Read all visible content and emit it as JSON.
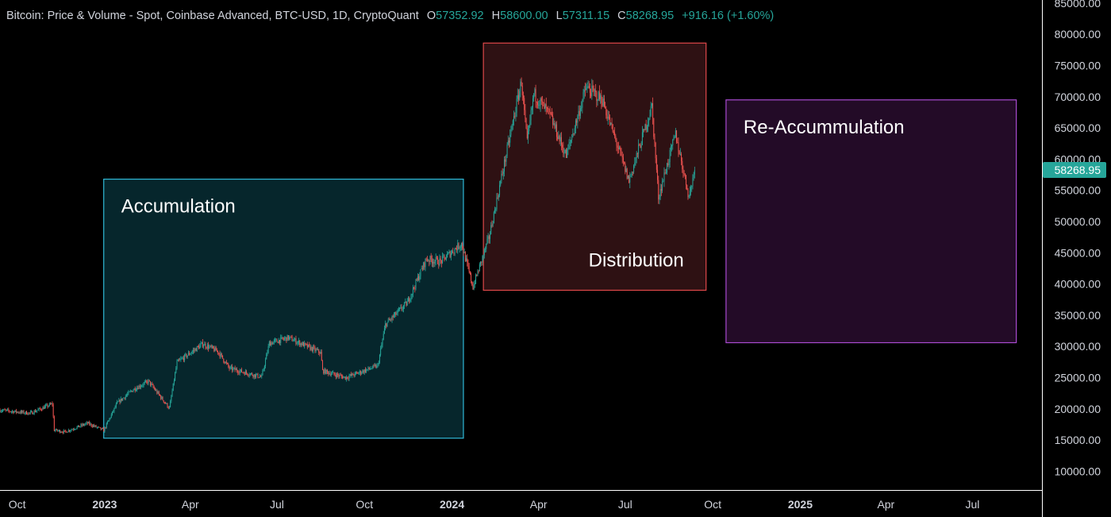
{
  "legend": {
    "title": "Bitcoin: Price & Volume - Spot, Coinbase Advanced, BTC-USD, 1D, CryptoQuant",
    "open_label": "O",
    "open": "57352.92",
    "high_label": "H",
    "high": "58600.00",
    "low_label": "L",
    "low": "57311.15",
    "close_label": "C",
    "close": "58268.95",
    "change": "+916.16 (+1.60%)"
  },
  "colors": {
    "background": "#000000",
    "up": "#26a69a",
    "down": "#ef5350",
    "axis_text": "#d1d4dc",
    "accumulation": "#2fb8d6",
    "distribution": "#e0484a",
    "reaccumulation": "#a94bd1"
  },
  "chart_data": {
    "type": "candlestick",
    "symbol": "BTC-USD",
    "interval": "1D",
    "y_axis": {
      "ticks": [
        "10000.00",
        "15000.00",
        "20000.00",
        "25000.00",
        "30000.00",
        "35000.00",
        "40000.00",
        "45000.00",
        "50000.00",
        "55000.00",
        "60000.00",
        "65000.00",
        "70000.00",
        "75000.00",
        "80000.00",
        "85000.00"
      ],
      "range": [
        7000,
        85500
      ],
      "last_price_label": "58268.95",
      "last_price": 58268.95
    },
    "x_axis": {
      "ticks": [
        {
          "label": "Oct",
          "date": "2022-10-01",
          "bold": false
        },
        {
          "label": "2023",
          "date": "2023-01-01",
          "bold": true
        },
        {
          "label": "Apr",
          "date": "2023-04-01",
          "bold": false
        },
        {
          "label": "Jul",
          "date": "2023-07-01",
          "bold": false
        },
        {
          "label": "Oct",
          "date": "2023-10-01",
          "bold": false
        },
        {
          "label": "2024",
          "date": "2024-01-01",
          "bold": true
        },
        {
          "label": "Apr",
          "date": "2024-04-01",
          "bold": false
        },
        {
          "label": "Jul",
          "date": "2024-07-01",
          "bold": false
        },
        {
          "label": "Oct",
          "date": "2024-10-01",
          "bold": false
        },
        {
          "label": "2025",
          "date": "2025-01-01",
          "bold": true
        },
        {
          "label": "Apr",
          "date": "2025-04-01",
          "bold": false
        },
        {
          "label": "Jul",
          "date": "2025-07-01",
          "bold": false
        }
      ],
      "range": [
        "2022-09-13",
        "2025-09-12"
      ]
    },
    "price_path": [
      [
        "2022-09-13",
        19800
      ],
      [
        "2022-10-15",
        19300
      ],
      [
        "2022-11-07",
        20800
      ],
      [
        "2022-11-09",
        16600
      ],
      [
        "2022-11-20",
        16300
      ],
      [
        "2022-12-14",
        17700
      ],
      [
        "2022-12-31",
        16550
      ],
      [
        "2023-01-14",
        20900
      ],
      [
        "2023-01-31",
        23100
      ],
      [
        "2023-02-16",
        24400
      ],
      [
        "2023-03-10",
        20100
      ],
      [
        "2023-03-18",
        27400
      ],
      [
        "2023-04-14",
        30400
      ],
      [
        "2023-04-30",
        29200
      ],
      [
        "2023-05-12",
        26500
      ],
      [
        "2023-06-15",
        25100
      ],
      [
        "2023-06-23",
        30500
      ],
      [
        "2023-07-13",
        31400
      ],
      [
        "2023-08-16",
        29000
      ],
      [
        "2023-08-18",
        26100
      ],
      [
        "2023-09-11",
        25000
      ],
      [
        "2023-10-15",
        26900
      ],
      [
        "2023-10-23",
        33500
      ],
      [
        "2023-11-15",
        37000
      ],
      [
        "2023-12-05",
        44000
      ],
      [
        "2023-12-20",
        43600
      ],
      [
        "2024-01-11",
        46500
      ],
      [
        "2024-01-23",
        39500
      ],
      [
        "2024-02-09",
        47500
      ],
      [
        "2024-02-28",
        61500
      ],
      [
        "2024-03-14",
        72500
      ],
      [
        "2024-03-20",
        62500
      ],
      [
        "2024-03-27",
        70500
      ],
      [
        "2024-04-13",
        67000
      ],
      [
        "2024-04-30",
        60500
      ],
      [
        "2024-05-21",
        71500
      ],
      [
        "2024-06-07",
        69500
      ],
      [
        "2024-07-05",
        56500
      ],
      [
        "2024-07-29",
        68500
      ],
      [
        "2024-08-05",
        54000
      ],
      [
        "2024-08-23",
        64000
      ],
      [
        "2024-09-06",
        54000
      ],
      [
        "2024-09-12",
        58268.95
      ]
    ],
    "annotations": [
      {
        "label": "Accumulation",
        "x0": "2022-12-31",
        "x1": "2024-01-13",
        "y0": 15300,
        "y1": 56800
      },
      {
        "label": "Distribution",
        "x0": "2024-02-03",
        "x1": "2024-09-24",
        "y0": 39000,
        "y1": 78600
      },
      {
        "label": "Re-Accummulation",
        "x0": "2024-10-15",
        "x1": "2025-08-16",
        "y0": 30600,
        "y1": 69500
      }
    ]
  }
}
